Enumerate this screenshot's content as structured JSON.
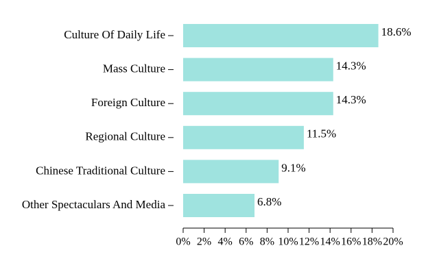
{
  "chart_data": {
    "type": "bar",
    "orientation": "horizontal",
    "categories": [
      "Culture Of Daily Life",
      "Mass Culture",
      "Foreign Culture",
      "Regional Culture",
      "Chinese Traditional Culture",
      "Other Spectaculars And Media"
    ],
    "values": [
      18.6,
      14.3,
      14.3,
      11.5,
      9.1,
      6.8
    ],
    "value_labels": [
      "18.6%",
      "14.3%",
      "14.3%",
      "11.5%",
      "9.1%",
      "6.8%"
    ],
    "title": "",
    "xlabel": "",
    "ylabel": "",
    "xlim": [
      0,
      20
    ],
    "x_ticks": [
      0,
      2,
      4,
      6,
      8,
      10,
      12,
      14,
      16,
      18,
      20
    ],
    "x_tick_labels": [
      "0%",
      "2%",
      "4%",
      "6%",
      "8%",
      "10%",
      "12%",
      "14%",
      "16%",
      "18%",
      "20%"
    ],
    "grid": false,
    "legend": "none",
    "bar_color": "#9fe3df",
    "text_color": "#000000"
  }
}
